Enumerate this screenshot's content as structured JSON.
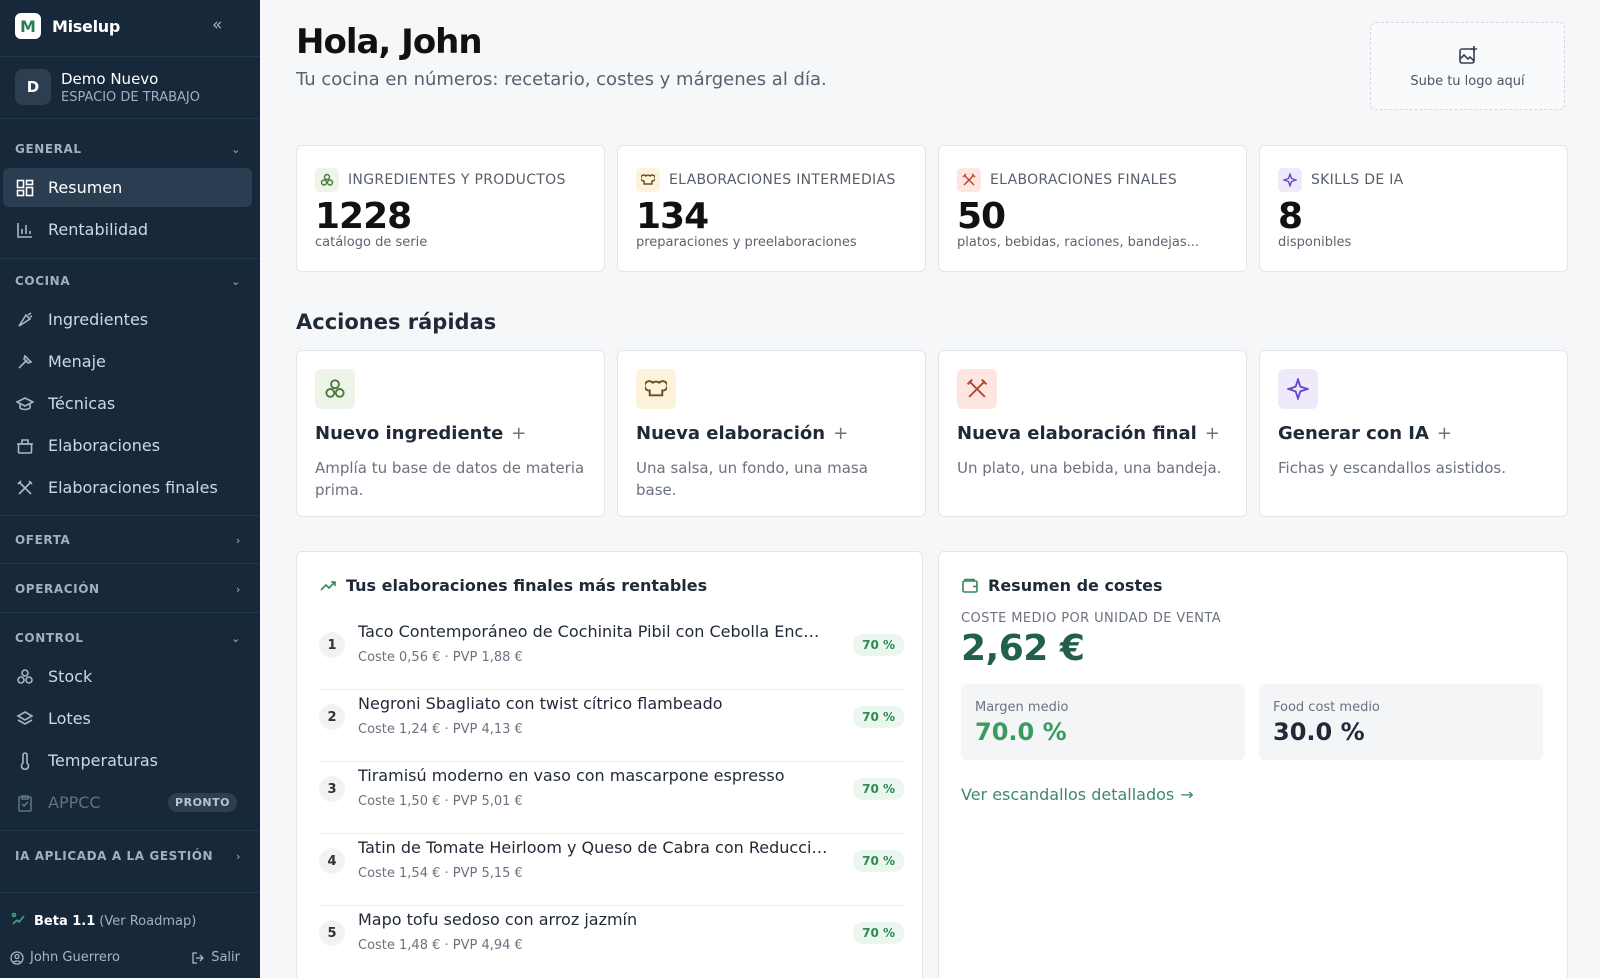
{
  "colors": {
    "sidebar_bg": "#17283a",
    "accent_green": "#2f8a55",
    "kpi_green": "#23604a",
    "ingredient_icon": "#4a7a3a",
    "intermediate_icon": "#6b4a1f",
    "final_icon": "#b4432a",
    "ia_icon": "#6a46c8"
  },
  "brand": {
    "name": "Miselup",
    "logo_letter": "M",
    "collapse_icon": "«"
  },
  "workspace": {
    "avatar": "D",
    "name": "Demo Nuevo",
    "label": "ESPACIO DE TRABAJO"
  },
  "sidebar": {
    "sections": {
      "general": "GENERAL",
      "cocina": "COCINA",
      "oferta": "OFERTA",
      "operacion": "OPERACIÓN",
      "control": "CONTROL",
      "ia": "IA APLICADA A LA GESTIÓN"
    },
    "items": {
      "resumen": "Resumen",
      "rentabilidad": "Rentabilidad",
      "ingredientes": "Ingredientes",
      "menaje": "Menaje",
      "tecnicas": "Técnicas",
      "elaboraciones": "Elaboraciones",
      "elaboraciones_finales": "Elaboraciones finales",
      "stock": "Stock",
      "lotes": "Lotes",
      "temperaturas": "Temperaturas",
      "appcc": "APPCC"
    },
    "pronto_badge": "PRONTO",
    "beta_version": "Beta 1.1",
    "roadmap": "(Ver Roadmap)",
    "user": "John Guerrero",
    "logout": "Salir"
  },
  "header": {
    "greeting": "Hola, John",
    "subtitle": "Tu cocina en números: recetario, costes y márgenes al día.",
    "logo_upload": "Sube tu logo aquí"
  },
  "stats": [
    {
      "label": "INGREDIENTES Y PRODUCTOS",
      "value": "1228",
      "desc": "catálogo de serie",
      "icon": "ingredients-icon"
    },
    {
      "label": "ELABORACIONES INTERMEDIAS",
      "value": "134",
      "desc": "preparaciones y preelaboraciones",
      "icon": "chef-hat-icon"
    },
    {
      "label": "ELABORACIONES FINALES",
      "value": "50",
      "desc": "platos, bebidas, raciones, bandejas...",
      "icon": "utensils-icon"
    },
    {
      "label": "SKILLS DE IA",
      "value": "8",
      "desc": "disponibles",
      "icon": "sparkles-icon"
    }
  ],
  "quick_actions": {
    "title": "Acciones rápidas",
    "items": [
      {
        "title": "Nuevo ingrediente",
        "plus": "+",
        "desc": "Amplía tu base de datos de materia prima."
      },
      {
        "title": "Nueva elaboración",
        "plus": "+",
        "desc": "Una salsa, un fondo, una masa base."
      },
      {
        "title": "Nueva elaboración final",
        "plus": "+",
        "desc": "Un plato, una bebida, una bandeja."
      },
      {
        "title": "Generar con IA",
        "plus": "+",
        "desc": "Fichas y escandallos asistidos."
      }
    ]
  },
  "top_finals": {
    "title": "Tus elaboraciones finales más rentables",
    "rows": [
      {
        "rank": "1",
        "name": "Taco Contemporáneo de Cochinita Pibil con Cebolla Encurtida ...",
        "cost": "Coste 0,56 € · PVP 1,88 €",
        "pct": "70 %"
      },
      {
        "rank": "2",
        "name": "Negroni Sbagliato con twist cítrico flambeado",
        "cost": "Coste 1,24 € · PVP 4,13 €",
        "pct": "70 %"
      },
      {
        "rank": "3",
        "name": "Tiramisú moderno en vaso con mascarpone espresso",
        "cost": "Coste 1,50 € · PVP 5,01 €",
        "pct": "70 %"
      },
      {
        "rank": "4",
        "name": "Tatin de Tomate Heirloom y Queso de Cabra con Reducción Bal...",
        "cost": "Coste 1,54 € · PVP 5,15 €",
        "pct": "70 %"
      },
      {
        "rank": "5",
        "name": "Mapo tofu sedoso con arroz jazmín",
        "cost": "Coste 1,48 € · PVP 4,94 €",
        "pct": "70 %"
      }
    ]
  },
  "costs": {
    "title": "Resumen de costes",
    "avg_label": "COSTE MEDIO POR UNIDAD DE VENTA",
    "avg_value": "2,62 €",
    "margin_label": "Margen medio",
    "margin_value": "70.0 %",
    "foodcost_label": "Food cost medio",
    "foodcost_value": "30.0 %",
    "link": "Ver escandallos detallados",
    "link_arrow": "→"
  }
}
